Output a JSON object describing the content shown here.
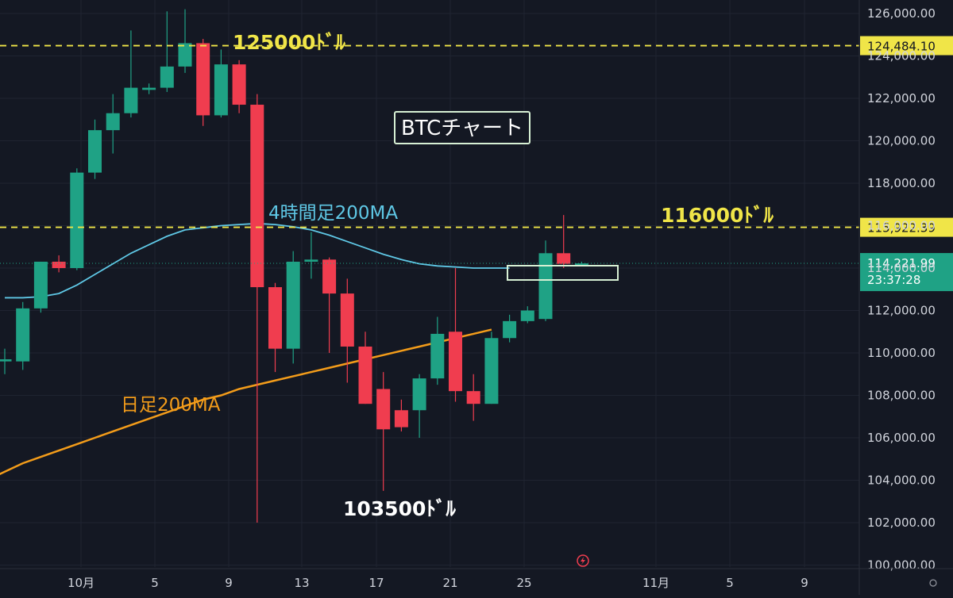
{
  "chart_data": {
    "type": "candlestick",
    "title": "BTCチャート",
    "x_ticks": [
      "10月",
      "5",
      "9",
      "13",
      "17",
      "21",
      "25",
      "11月",
      "5",
      "9"
    ],
    "y_ticks": [
      "100,000.00",
      "102,000.00",
      "104,000.00",
      "106,000.00",
      "108,000.00",
      "110,000.00",
      "112,000.00",
      "114,000.00",
      "116,000.00",
      "118,000.00",
      "120,000.00",
      "122,000.00",
      "124,000.00",
      "126,000.00"
    ],
    "ylim": [
      100000,
      126000
    ],
    "candles": [
      {
        "date": "09-28",
        "open": 109600,
        "high": 110200,
        "low": 109000,
        "close": 109700
      },
      {
        "date": "09-29",
        "open": 109600,
        "high": 112400,
        "low": 109200,
        "close": 112100
      },
      {
        "date": "09-30",
        "open": 112100,
        "high": 114300,
        "low": 111900,
        "close": 114300
      },
      {
        "date": "10-01",
        "open": 114300,
        "high": 114600,
        "low": 113800,
        "close": 114000
      },
      {
        "date": "10-02",
        "open": 114000,
        "high": 118700,
        "low": 113900,
        "close": 118500
      },
      {
        "date": "10-03",
        "open": 118500,
        "high": 121000,
        "low": 118200,
        "close": 120500
      },
      {
        "date": "10-04",
        "open": 120500,
        "high": 122200,
        "low": 119400,
        "close": 121300
      },
      {
        "date": "10-05",
        "open": 121300,
        "high": 125200,
        "low": 121100,
        "close": 122500
      },
      {
        "date": "10-06",
        "open": 122400,
        "high": 122700,
        "low": 122200,
        "close": 122500
      },
      {
        "date": "10-07",
        "open": 122500,
        "high": 126100,
        "low": 122300,
        "close": 123500
      },
      {
        "date": "10-08",
        "open": 123500,
        "high": 126200,
        "low": 123200,
        "close": 124600
      },
      {
        "date": "10-09",
        "open": 124600,
        "high": 124800,
        "low": 120700,
        "close": 121200
      },
      {
        "date": "10-10",
        "open": 121200,
        "high": 124300,
        "low": 121100,
        "close": 123600
      },
      {
        "date": "10-11",
        "open": 123600,
        "high": 123800,
        "low": 121300,
        "close": 121700
      },
      {
        "date": "10-12",
        "open": 121700,
        "high": 122200,
        "low": 102000,
        "close": 113100
      },
      {
        "date": "10-13",
        "open": 113100,
        "high": 113300,
        "low": 109100,
        "close": 110200
      },
      {
        "date": "10-14",
        "open": 110200,
        "high": 114800,
        "low": 109500,
        "close": 114300
      },
      {
        "date": "10-15",
        "open": 114300,
        "high": 115700,
        "low": 113500,
        "close": 114400
      },
      {
        "date": "10-16",
        "open": 114400,
        "high": 114500,
        "low": 110000,
        "close": 112800
      },
      {
        "date": "10-17",
        "open": 112800,
        "high": 113500,
        "low": 108600,
        "close": 110300
      },
      {
        "date": "10-18",
        "open": 110300,
        "high": 111000,
        "low": 107600,
        "close": 107600
      },
      {
        "date": "10-19",
        "open": 108300,
        "high": 109100,
        "low": 103500,
        "close": 106400
      },
      {
        "date": "10-20",
        "open": 107300,
        "high": 107800,
        "low": 106300,
        "close": 106500
      },
      {
        "date": "10-21",
        "open": 107300,
        "high": 109000,
        "low": 106000,
        "close": 108800
      },
      {
        "date": "10-22",
        "open": 108800,
        "high": 111700,
        "low": 108500,
        "close": 110900
      },
      {
        "date": "10-23",
        "open": 111000,
        "high": 114000,
        "low": 107700,
        "close": 108200
      },
      {
        "date": "10-24",
        "open": 108200,
        "high": 109000,
        "low": 106800,
        "close": 107600
      },
      {
        "date": "10-25",
        "open": 107600,
        "high": 111000,
        "low": 107600,
        "close": 110700
      },
      {
        "date": "10-26",
        "open": 110700,
        "high": 111800,
        "low": 110500,
        "close": 111500
      },
      {
        "date": "10-27",
        "open": 111500,
        "high": 112200,
        "low": 111400,
        "close": 112000
      },
      {
        "date": "10-28",
        "open": 111600,
        "high": 115300,
        "low": 111500,
        "close": 114700
      },
      {
        "date": "10-29",
        "open": 114700,
        "high": 116500,
        "low": 114000,
        "close": 114200
      },
      {
        "date": "10-30",
        "open": 114200,
        "high": 114300,
        "low": 114100,
        "close": 114220
      }
    ],
    "series": [
      {
        "name": "4時間足200MA",
        "color": "#5fc8e6",
        "values": [
          112600,
          112600,
          112650,
          112800,
          113200,
          113700,
          114200,
          114700,
          115100,
          115500,
          115800,
          115900,
          116000,
          116050,
          116100,
          116050,
          115950,
          115800,
          115550,
          115250,
          114950,
          114650,
          114400,
          114200,
          114100,
          114050,
          114000,
          114000,
          114000
        ]
      },
      {
        "name": "日足200MA",
        "color": "#f39c1a",
        "values": [
          104000,
          104400,
          104800,
          105100,
          105400,
          105700,
          106000,
          106300,
          106600,
          106900,
          107200,
          107500,
          107800,
          108000,
          108300,
          108500,
          108700,
          108900,
          109100,
          109300,
          109500,
          109700,
          109900,
          110100,
          110300,
          110500,
          110700,
          110900,
          111100
        ]
      }
    ],
    "levels": [
      {
        "price": 124484.1,
        "label": "124,484.10"
      },
      {
        "price": 115922.39,
        "label": "115,922.39"
      }
    ],
    "current_price": {
      "price": 114221.99,
      "label": "114,221.99",
      "timer": "23:37:28"
    },
    "annotations": [
      "125000ﾄﾞﾙ",
      "116000ﾄﾞﾙ",
      "103500ﾄﾞﾙ",
      "4時間足200MA",
      "日足200MA"
    ],
    "colors": {
      "background": "#141823",
      "up": "#1fa285",
      "down": "#f03d4f",
      "dashed_line": "#f0e548",
      "highlight": "#d7f0d4",
      "axis_text": "#d1d4dc"
    }
  }
}
